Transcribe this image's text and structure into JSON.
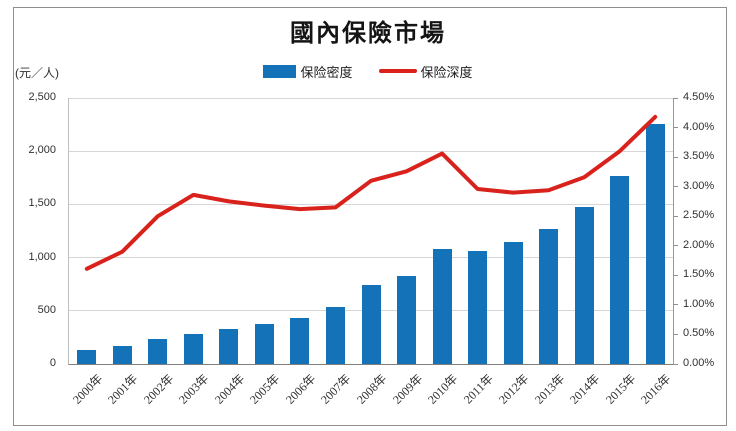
{
  "chart": {
    "title": "國內保險市場",
    "unit_label": "(元／人)"
  },
  "legend": {
    "items": [
      {
        "label": "保险密度",
        "marker": "bar-swatch",
        "color": "#1472b9"
      },
      {
        "label": "保险深度",
        "marker": "line-swatch",
        "color": "#d9221c"
      }
    ]
  },
  "chart_data": {
    "type": "bar+line",
    "title": "國內保險市場",
    "categories": [
      "2000年",
      "2001年",
      "2002年",
      "2003年",
      "2004年",
      "2005年",
      "2006年",
      "2007年",
      "2008年",
      "2009年",
      "2010年",
      "2011年",
      "2012年",
      "2013年",
      "2014年",
      "2015年",
      "2016年"
    ],
    "series": [
      {
        "name": "保险密度",
        "type": "bar",
        "axis": "left",
        "color": "#1472b9",
        "values": [
          128,
          169,
          238,
          287,
          332,
          380,
          431,
          533,
          739,
          832,
          1083,
          1064,
          1144,
          1266,
          1479,
          1766,
          2258
        ]
      },
      {
        "name": "保险深度",
        "type": "line",
        "axis": "right",
        "color": "#d9221c",
        "values": [
          1.61,
          1.9,
          2.5,
          2.86,
          2.75,
          2.68,
          2.62,
          2.65,
          3.1,
          3.26,
          3.56,
          2.96,
          2.9,
          2.94,
          3.16,
          3.6,
          4.18
        ]
      }
    ],
    "left_axis": {
      "label": "(元／人)",
      "min": 0,
      "max": 2500,
      "ticks": [
        "0",
        "500",
        "1,000",
        "1,500",
        "2,000",
        "2,500"
      ]
    },
    "right_axis": {
      "min": 0,
      "max": 4.5,
      "ticks": [
        "0.00%",
        "0.50%",
        "1.00%",
        "1.50%",
        "2.00%",
        "2.50%",
        "3.00%",
        "3.50%",
        "4.00%",
        "4.50%"
      ],
      "unit": "%"
    },
    "grid": true,
    "legend_position": "top"
  }
}
